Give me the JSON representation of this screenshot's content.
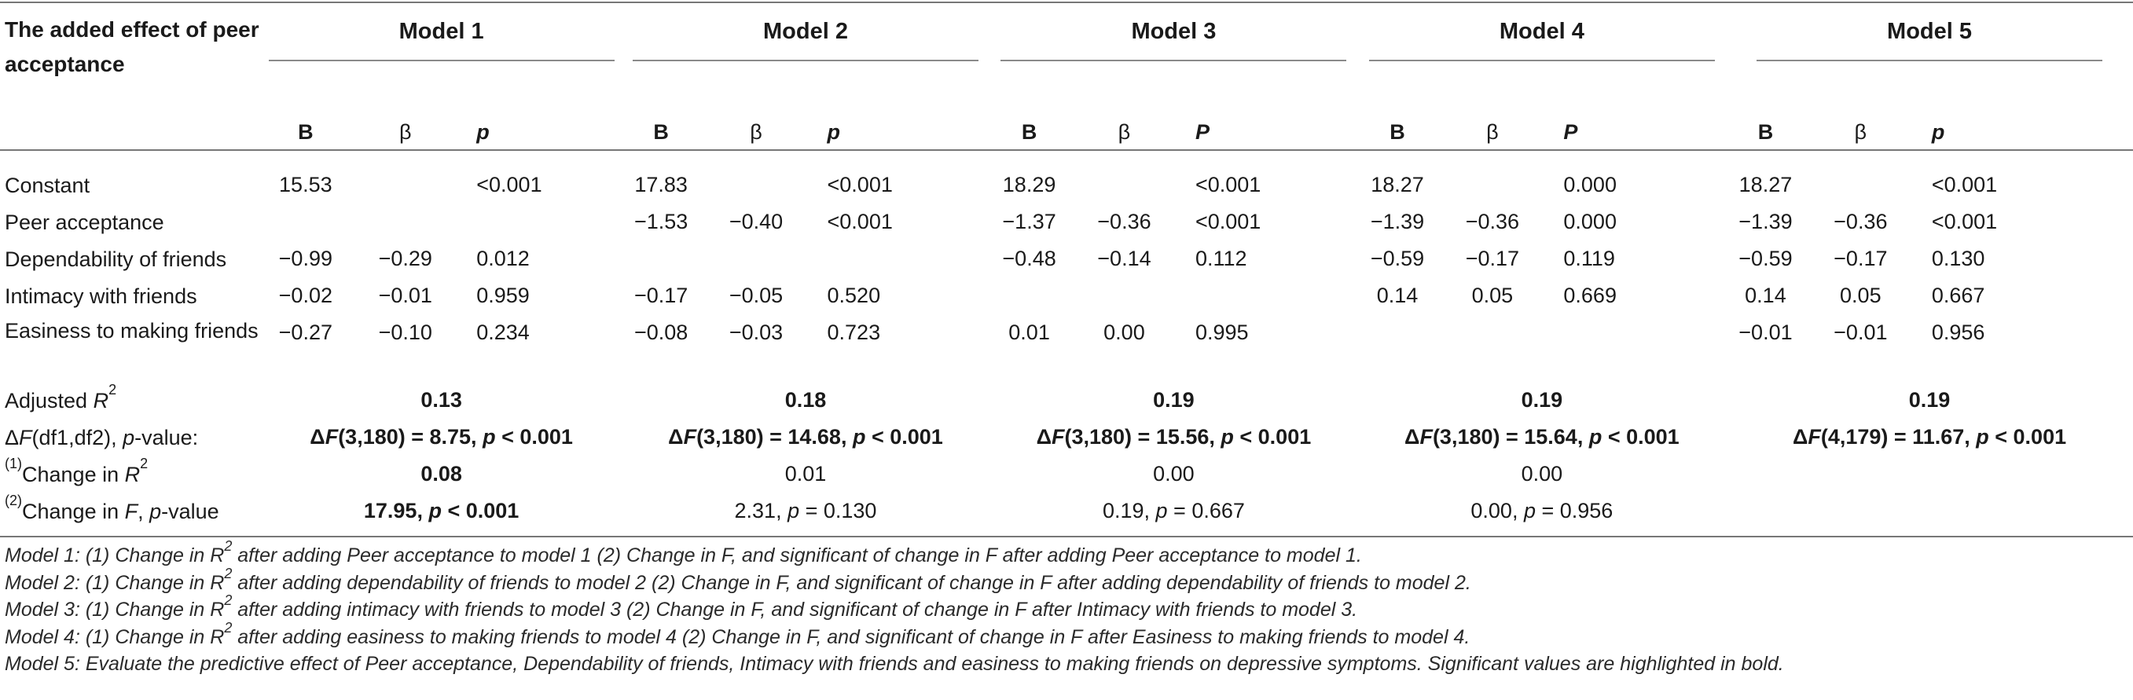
{
  "header": {
    "corner_label": "The added effect of peer acceptance",
    "models": [
      "Model 1",
      "Model 2",
      "Model 3",
      "Model 4",
      "Model 5"
    ],
    "subcols": [
      [
        "B",
        "β",
        "p"
      ],
      [
        "B",
        "β",
        "p"
      ],
      [
        "B",
        "β",
        "P"
      ],
      [
        "B",
        "β",
        "P"
      ],
      [
        "B",
        "β",
        "p"
      ]
    ]
  },
  "rows": [
    {
      "label": "Constant",
      "cells": [
        [
          "15.53",
          "",
          "<0.001"
        ],
        [
          "17.83",
          "",
          "<0.001"
        ],
        [
          "18.29",
          "",
          "<0.001"
        ],
        [
          "18.27",
          "",
          "0.000"
        ],
        [
          "18.27",
          "",
          "<0.001"
        ]
      ]
    },
    {
      "label": "Peer acceptance",
      "cells": [
        [
          "",
          "",
          ""
        ],
        [
          "−1.53",
          "−0.40",
          "<0.001"
        ],
        [
          "−1.37",
          "−0.36",
          "<0.001"
        ],
        [
          "−1.39",
          "−0.36",
          "0.000"
        ],
        [
          "−1.39",
          "−0.36",
          "<0.001"
        ]
      ]
    },
    {
      "label": "Dependability of friends",
      "cells": [
        [
          "−0.99",
          "−0.29",
          "0.012"
        ],
        [
          "",
          "",
          ""
        ],
        [
          "−0.48",
          "−0.14",
          "0.112"
        ],
        [
          "−0.59",
          "−0.17",
          "0.119"
        ],
        [
          "−0.59",
          "−0.17",
          "0.130"
        ]
      ]
    },
    {
      "label": "Intimacy with friends",
      "cells": [
        [
          "−0.02",
          "−0.01",
          "0.959"
        ],
        [
          "−0.17",
          "−0.05",
          "0.520"
        ],
        [
          "",
          "",
          ""
        ],
        [
          "0.14",
          "0.05",
          "0.669"
        ],
        [
          "0.14",
          "0.05",
          "0.667"
        ]
      ]
    },
    {
      "label": "Easiness to making friends",
      "cells": [
        [
          "−0.27",
          "−0.10",
          "0.234"
        ],
        [
          "−0.08",
          "−0.03",
          "0.723"
        ],
        [
          "0.01",
          "0.00",
          "0.995"
        ],
        [
          "",
          "",
          ""
        ],
        [
          "−0.01",
          "−0.01",
          "0.956"
        ]
      ]
    }
  ],
  "summary": {
    "adjusted_r2": {
      "label_prefix": "Adjusted ",
      "label_var": "R",
      "label_sup": "2",
      "values": [
        "0.13",
        "0.18",
        "0.19",
        "0.19",
        "0.19"
      ]
    },
    "delta_f": {
      "label_pre": "Δ",
      "label_var": "F",
      "label_mid": "(df1,df2), ",
      "label_var2": "p",
      "label_post": "-value:",
      "values": [
        {
          "pre": "Δ",
          "var": "F",
          "df": "(3,180) = 8.75, ",
          "p": "p",
          "rest": " < 0.001"
        },
        {
          "pre": "Δ",
          "var": "F",
          "df": "(3,180) = 14.68, ",
          "p": "p",
          "rest": " < 0.001"
        },
        {
          "pre": "Δ",
          "var": "F",
          "df": "(3,180) = 15.56, ",
          "p": "p",
          "rest": " < 0.001"
        },
        {
          "pre": "Δ",
          "var": "F",
          "df": "(3,180) = 15.64, ",
          "p": "p",
          "rest": " < 0.001"
        },
        {
          "pre": "Δ",
          "var": "F",
          "df": "(4,179) = 11.67, ",
          "p": "p",
          "rest": " < 0.001"
        }
      ]
    },
    "change_r2": {
      "label_sup": "(1)",
      "label_text": "Change in ",
      "label_var": "R",
      "label_sup2": "2",
      "values": [
        "0.08",
        "0.01",
        "0.00",
        "0.00"
      ]
    },
    "change_f": {
      "label_sup": "(2)",
      "label_text": "Change in ",
      "label_var": "F",
      "label_post": ", ",
      "label_var2": "p",
      "label_post2": "-value",
      "values": [
        {
          "pre": "17.95, ",
          "p": "p",
          "rest": " < 0.001"
        },
        {
          "pre": "2.31, ",
          "p": "p",
          "rest": " = 0.130"
        },
        {
          "pre": "0.19, ",
          "p": "p",
          "rest": " = 0.667"
        },
        {
          "pre": "0.00, ",
          "p": "p",
          "rest": " = 0.956"
        }
      ]
    }
  },
  "notes": [
    {
      "a": "Model 1: (1) Change in R",
      "sup": "2",
      "b": " after adding Peer acceptance to model 1 (2) Change in F, and significant of change in F after adding Peer acceptance to model 1."
    },
    {
      "a": "Model 2: (1) Change in R",
      "sup": "2",
      "b": " after adding dependability of friends to model 2 (2) Change in F, and significant of change in F after adding dependability of friends to model 2."
    },
    {
      "a": "Model 3: (1) Change in R",
      "sup": "2",
      "b": " after adding intimacy with friends to model 3 (2) Change in F, and significant of change in F after Intimacy with friends to model 3."
    },
    {
      "a": "Model 4: (1) Change in R",
      "sup": "2",
      "b": " after adding easiness to making friends to model 4 (2) Change in F, and significant of change in F after Easiness to making friends to model 4."
    },
    {
      "a": "Model 5: Evaluate the predictive effect of Peer acceptance, Dependability of friends, Intimacy with friends and easiness to making friends on depressive symptoms. Significant values are highlighted in bold.",
      "sup": "",
      "b": ""
    }
  ]
}
